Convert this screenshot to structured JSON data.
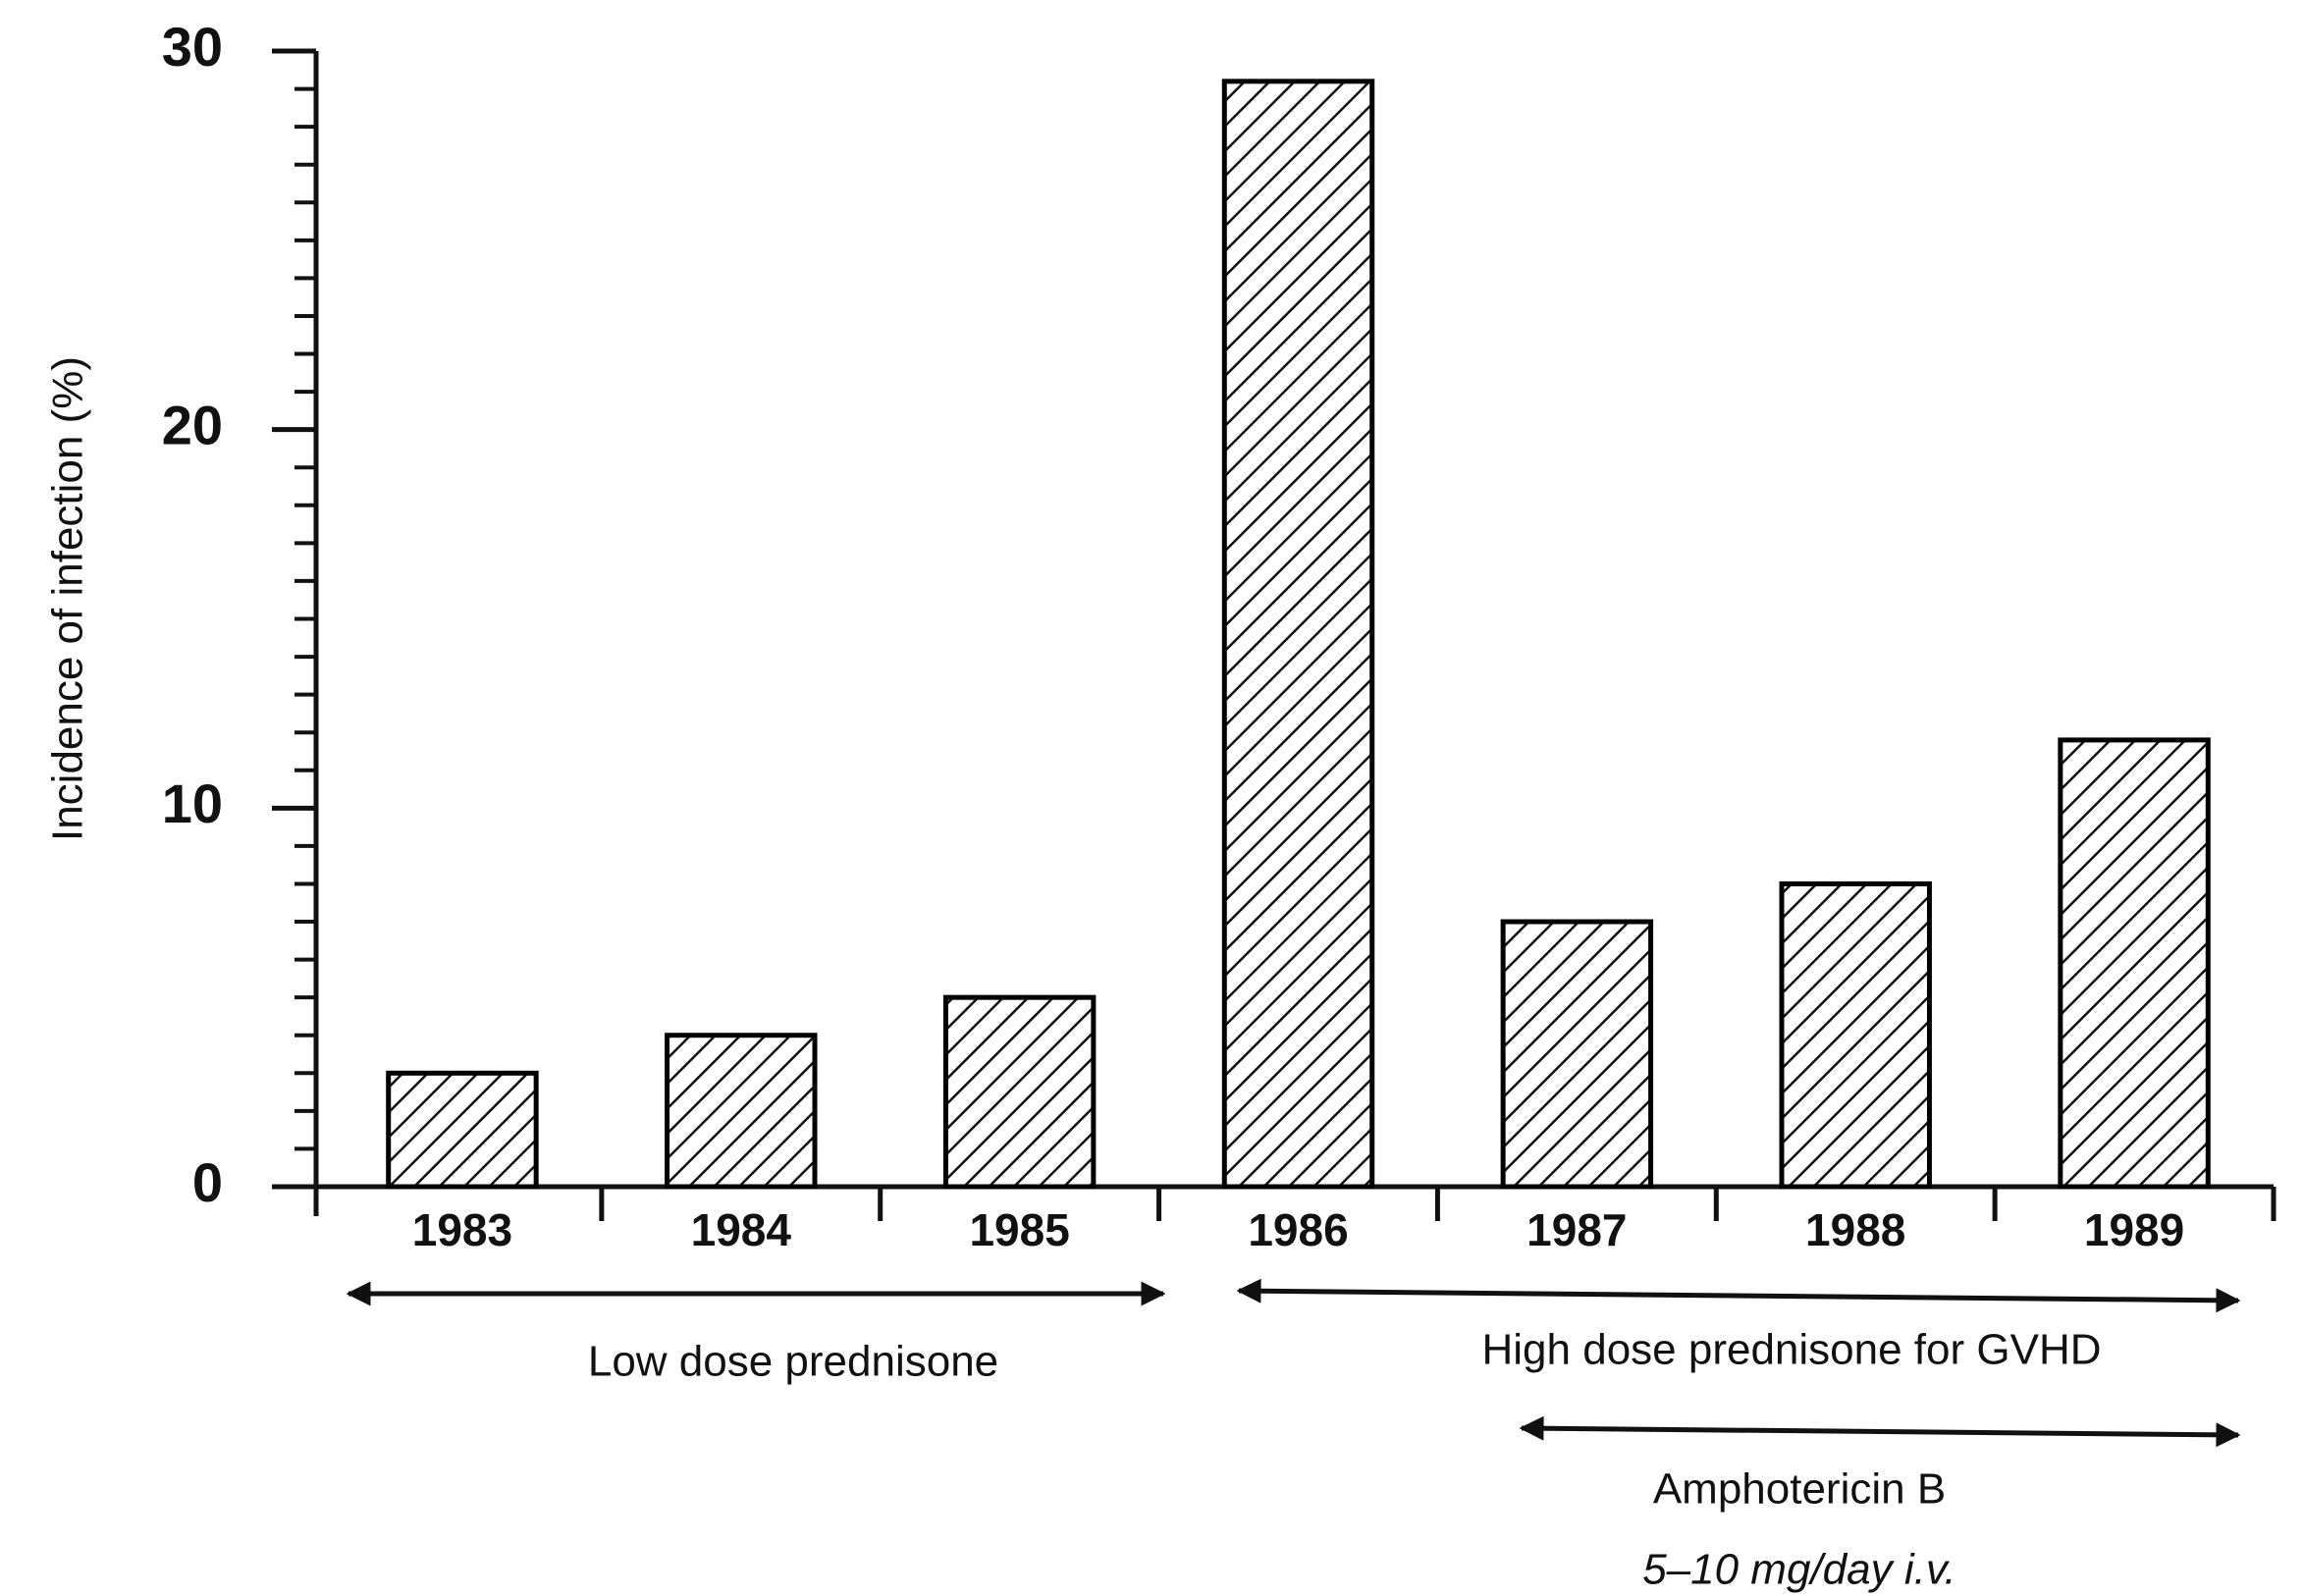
{
  "chart_data": {
    "type": "bar",
    "ylabel": "Incidence of infection (%)",
    "categories": [
      "1983",
      "1984",
      "1985",
      "1986",
      "1987",
      "1988",
      "1989"
    ],
    "values": [
      3,
      4,
      5,
      29.2,
      7,
      8,
      11.8
    ],
    "color": "#000000",
    "ylim": [
      0,
      30
    ],
    "yticks": [
      0,
      10,
      20,
      30
    ],
    "minor_yticks": [
      1,
      2,
      3,
      4,
      5,
      6,
      7,
      8,
      9,
      11,
      12,
      13,
      14,
      15,
      16,
      17,
      18,
      19,
      21,
      22,
      23,
      24,
      25,
      26,
      27,
      28,
      29
    ],
    "grid": false,
    "annotations": [
      "Low dose prednisone",
      "High dose prednisone for GVHD",
      "Amphotericin B",
      "5–10 mg/day i.v."
    ]
  }
}
